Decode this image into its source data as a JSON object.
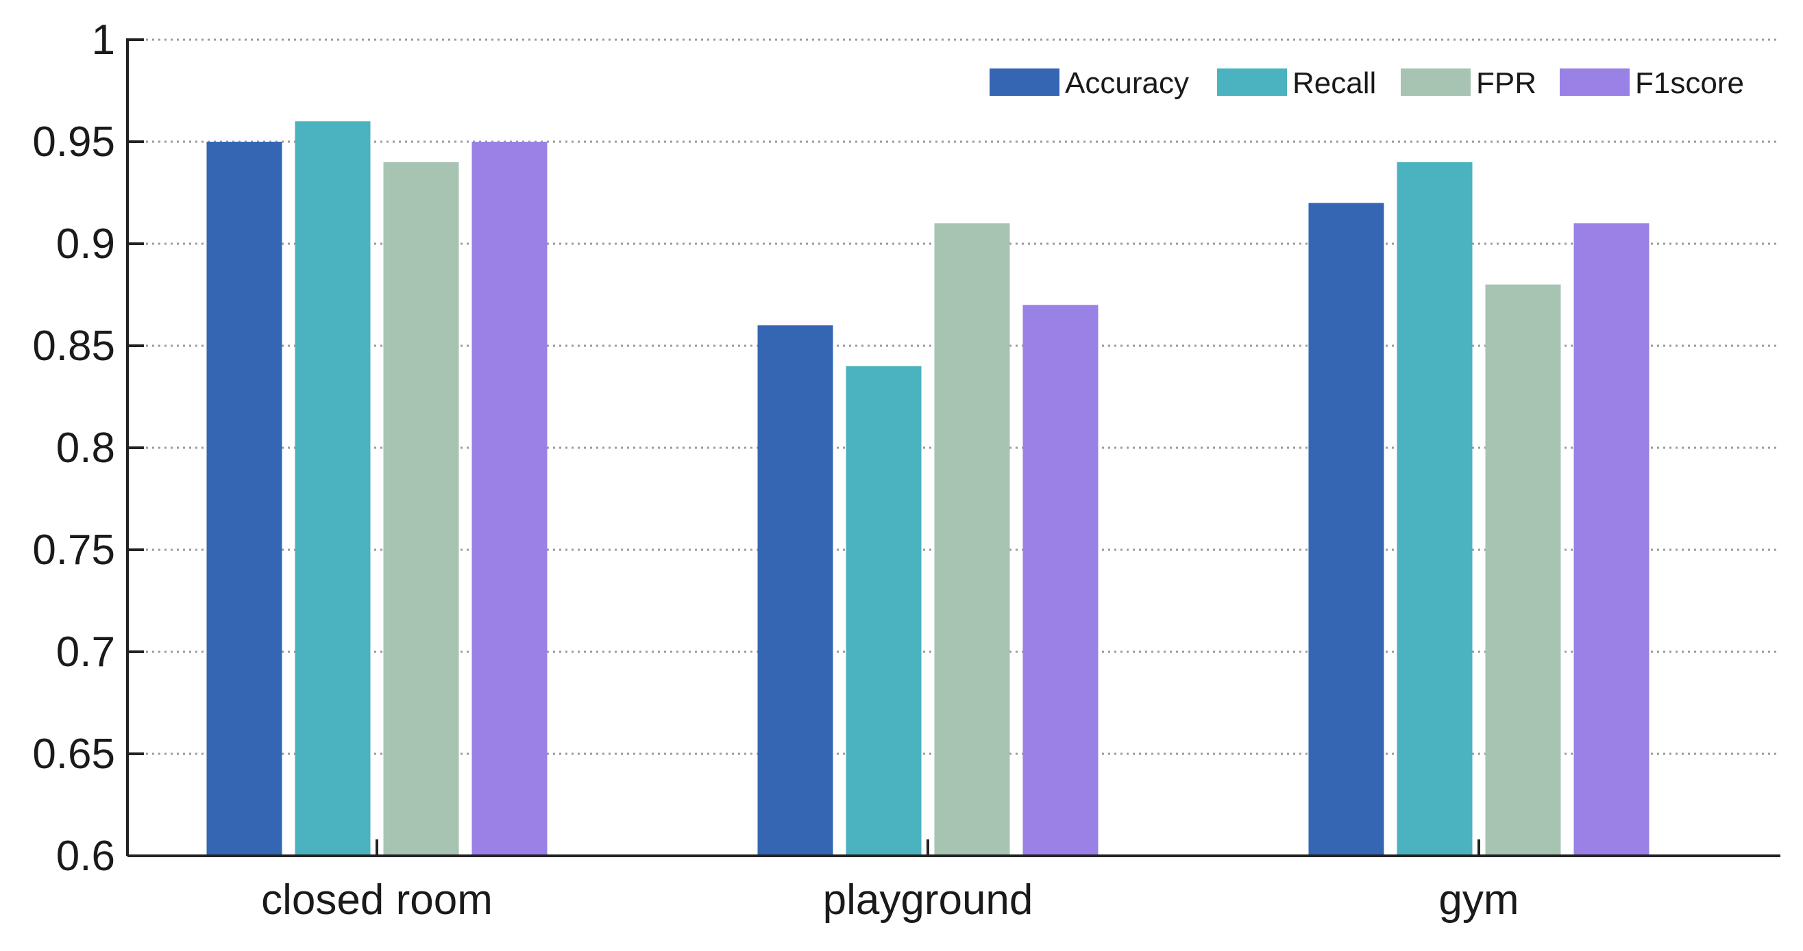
{
  "chart_data": {
    "type": "bar",
    "title": "",
    "xlabel": "",
    "ylabel": "",
    "categories": [
      "closed room",
      "playground",
      "gym"
    ],
    "series": [
      {
        "name": "Accuracy",
        "color": "#3466B4",
        "values": [
          0.95,
          0.86,
          0.92
        ]
      },
      {
        "name": "Recall",
        "color": "#4BB2BF",
        "values": [
          0.96,
          0.84,
          0.94
        ]
      },
      {
        "name": "FPR",
        "color": "#A7C3B2",
        "values": [
          0.94,
          0.91,
          0.88
        ]
      },
      {
        "name": "F1score",
        "color": "#9981E5",
        "values": [
          0.95,
          0.87,
          0.91
        ]
      }
    ],
    "ylim": [
      0.6,
      1
    ],
    "yticks": [
      0.6,
      0.65,
      0.7,
      0.75,
      0.8,
      0.85,
      0.9,
      0.95,
      1
    ],
    "ytick_labels": [
      "0.6",
      "0.65",
      "0.7",
      "0.75",
      "0.8",
      "0.85",
      "0.9",
      "0.95",
      "1"
    ],
    "grid": "horizontal dotted",
    "legend_position": "top-right"
  }
}
